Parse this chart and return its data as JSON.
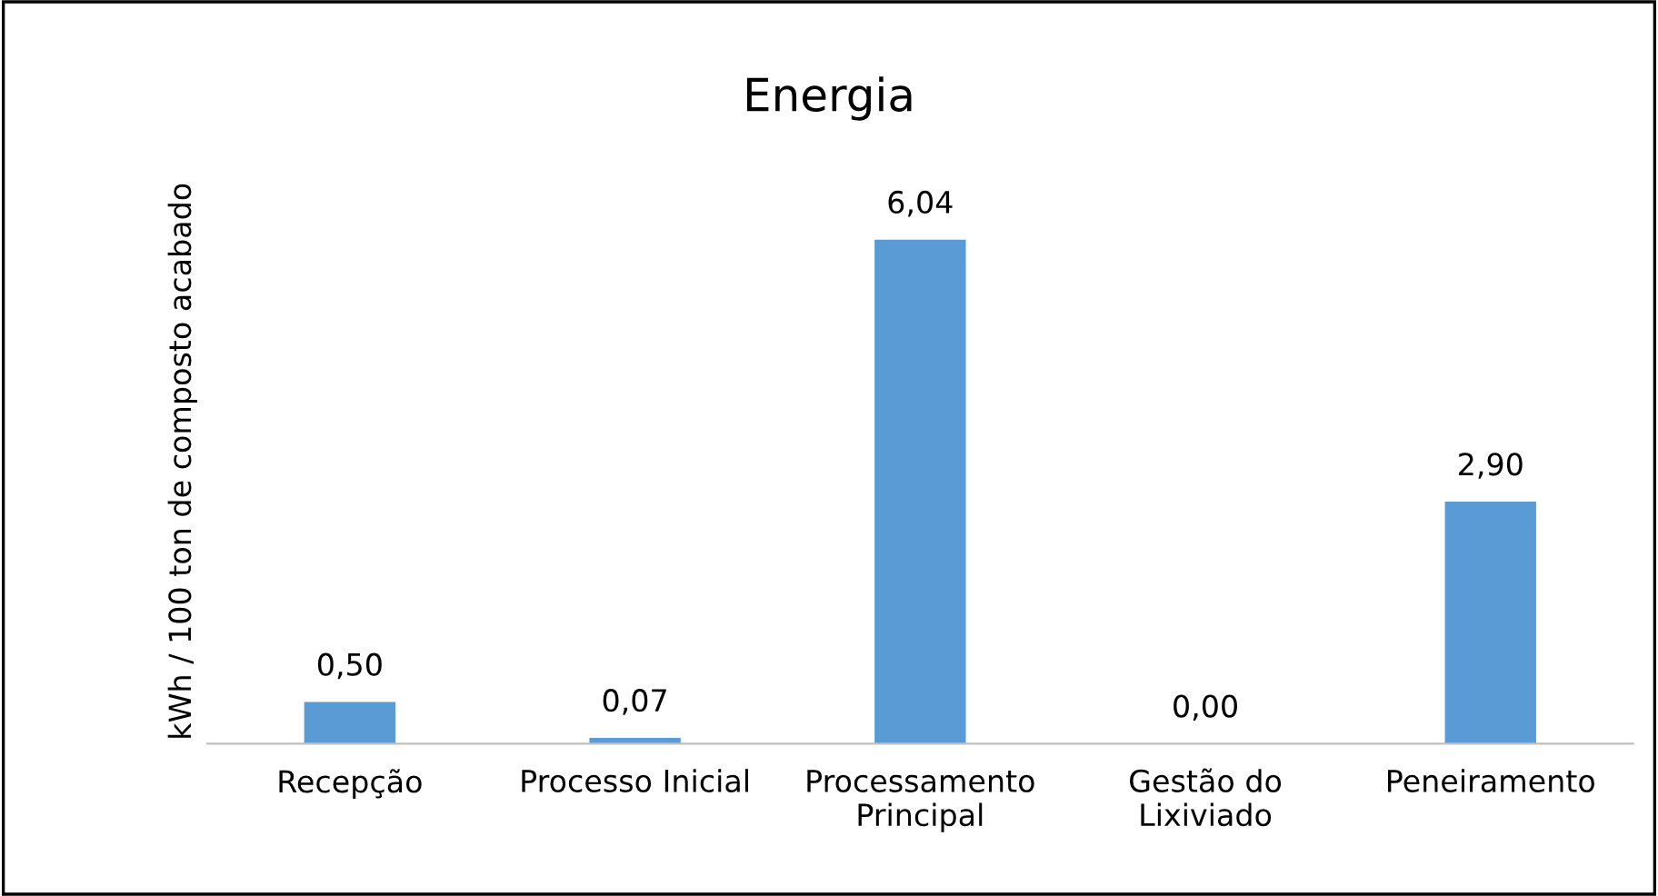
{
  "chart_data": {
    "type": "bar",
    "title": "Energia",
    "ylabel": "kWh / 100 ton de composto acabado",
    "categories": [
      "Recepção",
      "Processo Inicial",
      "Processamento\nPrincipal",
      "Gestão do\nLixiviado",
      "Peneiramento"
    ],
    "values": [
      0.5,
      0.07,
      6.04,
      0.0,
      2.9
    ],
    "value_labels": [
      "0,50",
      "0,07",
      "6,04",
      "0,00",
      "2,90"
    ],
    "color": "#5b9bd5",
    "tick_labels": "x",
    "grid": false,
    "legend": false
  }
}
